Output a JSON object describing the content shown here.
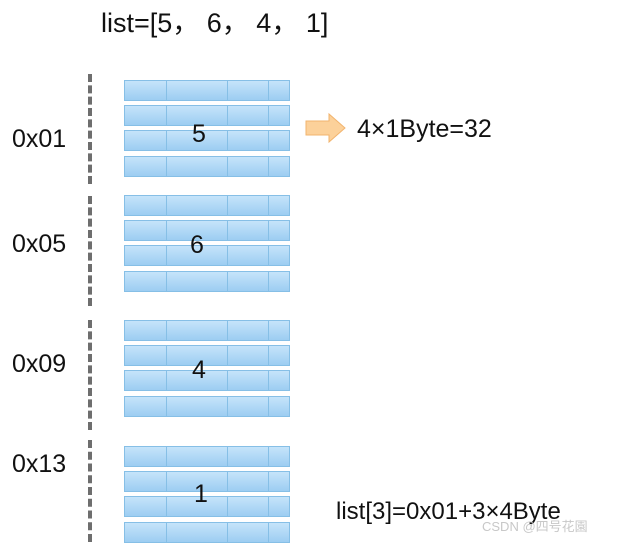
{
  "title": "list=[5， 6， 4， 1]",
  "memory_blocks": [
    {
      "address": "0x01",
      "value": "5"
    },
    {
      "address": "0x05",
      "value": "6"
    },
    {
      "address": "0x09",
      "value": "4"
    },
    {
      "address": "0x13",
      "value": "1"
    }
  ],
  "size_note": "4×1Byte=32",
  "index_formula": "list[3]=0x01+3×4Byte",
  "watermark": "CSDN @四号花園",
  "colors": {
    "cell_fill": "#aed6f5",
    "cell_border": "#86bfe6",
    "arrow": "#fcd19a",
    "axis_dash": "#6e6e6e"
  },
  "icons": {
    "size_arrow": "right-arrow-icon"
  }
}
